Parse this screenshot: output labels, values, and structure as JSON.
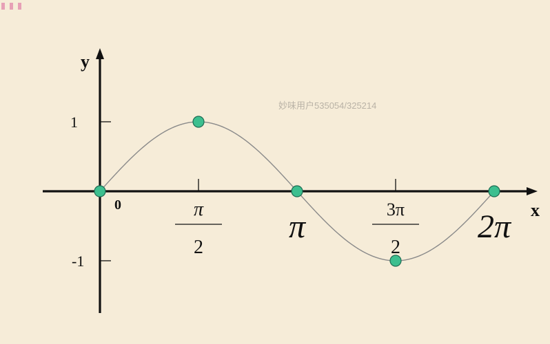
{
  "chart_data": {
    "type": "line",
    "title": "",
    "xlabel": "x",
    "ylabel": "y",
    "xlim": [
      -0.2,
      2.0
    ],
    "ylim": [
      -1.55,
      1.95
    ],
    "x_unit": "π",
    "curve": {
      "function": "sin(x)",
      "x_from": 0,
      "x_to": 2,
      "color": "#8a8a8a"
    },
    "points": [
      {
        "x": 0,
        "y": 0
      },
      {
        "x": 0.5,
        "y": 1
      },
      {
        "x": 1,
        "y": 0
      },
      {
        "x": 1.5,
        "y": -1
      },
      {
        "x": 2,
        "y": 0
      }
    ],
    "point_color": "#3dbf8f",
    "x_ticks": [
      {
        "value": 0.5,
        "label_num": "π",
        "label_den": "2",
        "style": "fraction"
      },
      {
        "value": 1,
        "label": "π",
        "style": "large"
      },
      {
        "value": 1.5,
        "label_num": "3π",
        "label_den": "2",
        "style": "fraction"
      },
      {
        "value": 2,
        "label": "2π",
        "style": "large"
      }
    ],
    "origin_label": "0",
    "y_ticks": [
      {
        "value": 1,
        "label": "1"
      },
      {
        "value": -1,
        "label": "-1"
      }
    ],
    "grid": false
  },
  "watermark": "妙味用户535054/325214"
}
